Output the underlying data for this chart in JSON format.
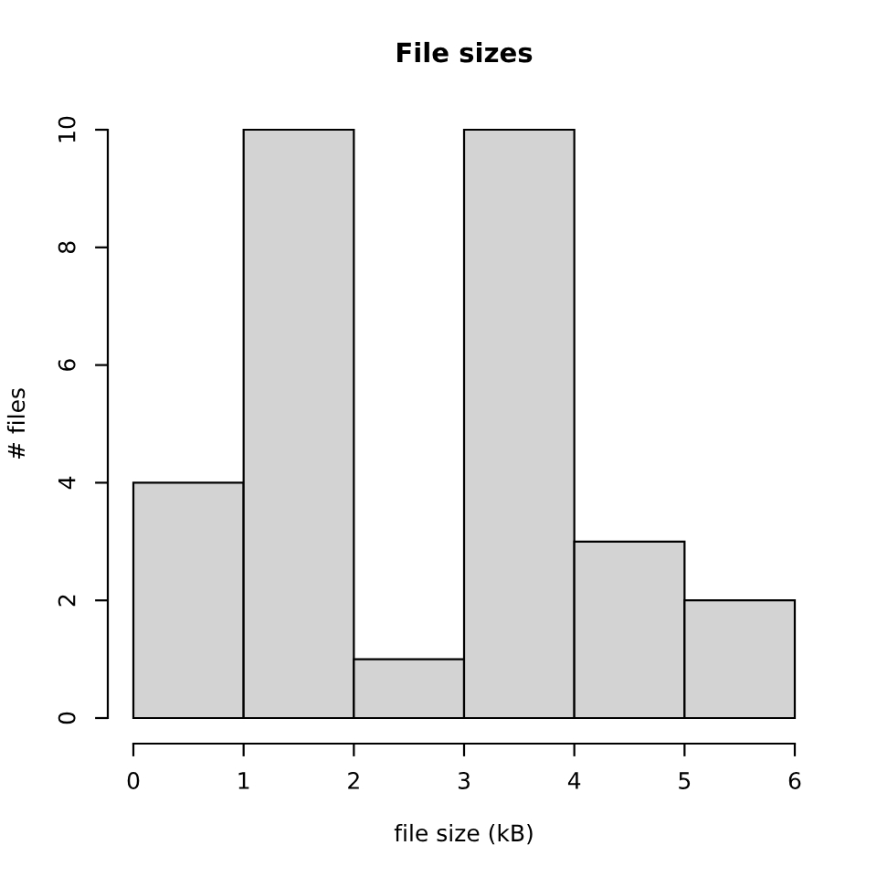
{
  "chart_data": {
    "type": "histogram",
    "title": "File sizes",
    "xlabel": "file size (kB)",
    "ylabel": "# files",
    "bins": [
      0,
      1,
      2,
      3,
      4,
      5,
      6
    ],
    "values": [
      4,
      10,
      1,
      10,
      3,
      2
    ],
    "color": "#d3d3d3",
    "xlim": [
      0,
      6
    ],
    "ylim": [
      0,
      10
    ],
    "xticks": [
      0,
      1,
      2,
      3,
      4,
      5,
      6
    ],
    "yticks": [
      0,
      2,
      4,
      6,
      8,
      10
    ]
  }
}
